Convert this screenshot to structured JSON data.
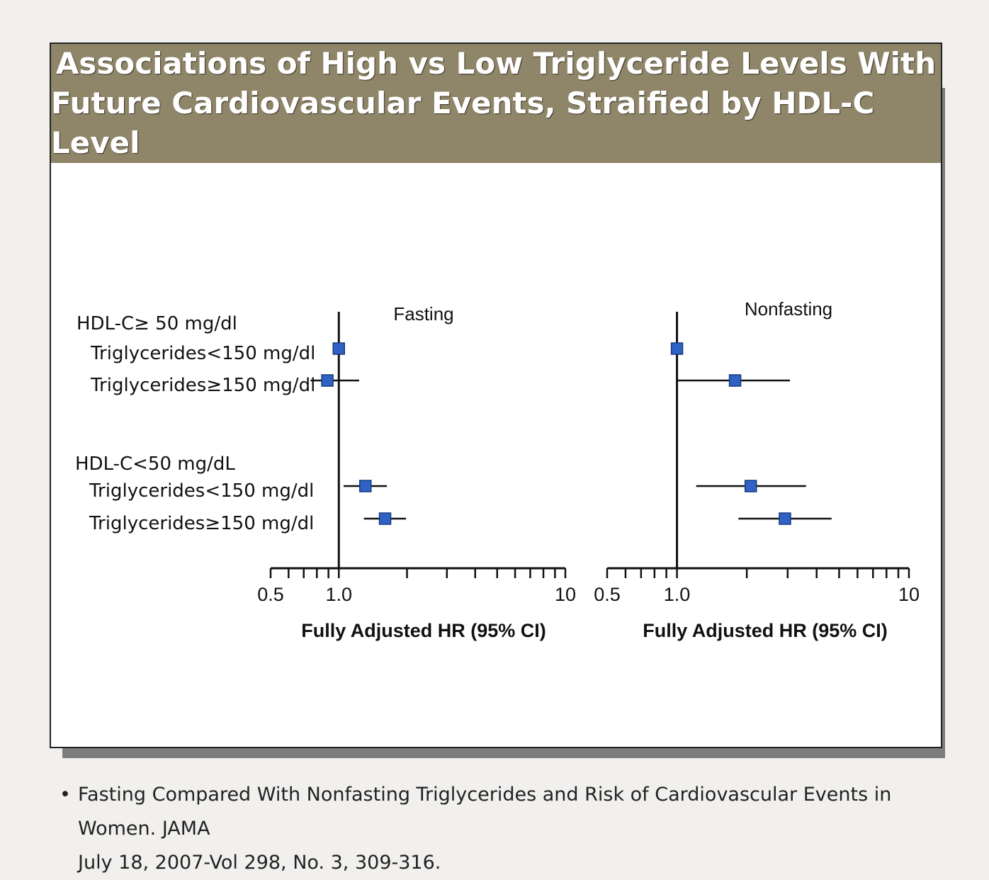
{
  "header": {
    "title_line1": "Associations of High vs Low Triglyceride Levels With",
    "title_line2": "Future Cardiovascular Events, Straified by HDL-C Level"
  },
  "caption": {
    "bullet": "•",
    "line1": "Fasting Compared With Nonfasting Triglycerides and Risk of Cardiovascular Events in Women. JAMA",
    "line2": "July 18, 2007-Vol 298, No. 3, 309-316."
  },
  "colors": {
    "banner": "#8f8568",
    "marker": "#2f62c4",
    "marker_edge": "#173a80",
    "axis": "#111111"
  },
  "chart_data": {
    "type": "forest",
    "scale": "log",
    "xlim": [
      0.5,
      10
    ],
    "tick_labels": [
      "0.5",
      "1.0",
      "10"
    ],
    "reference_line": 1.0,
    "row_labels": [
      {
        "text": "HDL-C≥ 50 mg/dl",
        "group": true
      },
      {
        "text": "Triglycerides<150 mg/dl",
        "group": false
      },
      {
        "text": "Triglycerides≥150 mg/dl",
        "group": false
      },
      {
        "text": "HDL-C<50 mg/dL",
        "group": true
      },
      {
        "text": "Triglycerides<150 mg/dl",
        "group": false
      },
      {
        "text": "Triglycerides≥150 mg/dl",
        "group": false
      }
    ],
    "panels": [
      {
        "title": "Fasting",
        "xlabel": "Fully Adjusted HR (95% CI)",
        "estimates": [
          {
            "row": 1,
            "hr": 1.0,
            "lo": null,
            "hi": null
          },
          {
            "row": 2,
            "hr": 0.89,
            "lo": 0.75,
            "hi": 1.23
          },
          {
            "row": 4,
            "hr": 1.31,
            "lo": 1.05,
            "hi": 1.63
          },
          {
            "row": 5,
            "hr": 1.6,
            "lo": 1.29,
            "hi": 1.98
          }
        ]
      },
      {
        "title": "Nonfasting",
        "xlabel": "Fully Adjusted HR (95% CI)",
        "estimates": [
          {
            "row": 1,
            "hr": 1.0,
            "lo": null,
            "hi": null
          },
          {
            "row": 2,
            "hr": 1.78,
            "lo": 1.0,
            "hi": 3.07
          },
          {
            "row": 4,
            "hr": 2.08,
            "lo": 1.21,
            "hi": 3.6
          },
          {
            "row": 5,
            "hr": 2.92,
            "lo": 1.84,
            "hi": 4.64
          }
        ]
      }
    ]
  }
}
